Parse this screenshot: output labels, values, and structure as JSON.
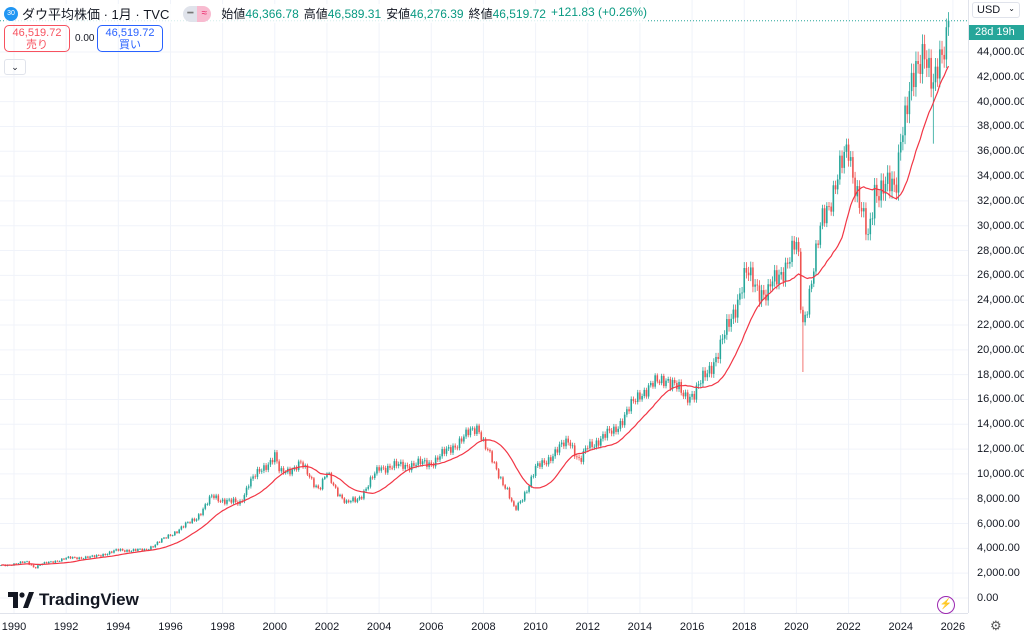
{
  "header": {
    "symbol_badge": "30",
    "title": "ダウ平均株価 · 1月 · TVC",
    "ohlc": [
      {
        "label": "始値",
        "value": "46,366.78"
      },
      {
        "label": "高値",
        "value": "46,589.31"
      },
      {
        "label": "安値",
        "value": "46,276.39"
      },
      {
        "label": "終値",
        "value": "46,519.72"
      }
    ],
    "change": "+121.83 (+0.26%)"
  },
  "trade": {
    "sell_price": "46,519.72",
    "sell_label": "売り",
    "spread": "0.00",
    "buy_price": "46,519.72",
    "buy_label": "買い"
  },
  "currency": "USD",
  "countdown": "28d 19h",
  "brand": "TradingView",
  "colors": {
    "up": "#26a69a",
    "down": "#ef5350",
    "ma": "#f23645",
    "grid": "#f0f3fa"
  },
  "chart_data": {
    "type": "candlestick",
    "interval": "1 month",
    "title": "ダウ平均株価",
    "ylabel": "USD",
    "ylim": [
      0,
      49000
    ],
    "xlim": [
      1989.5,
      2026.5
    ],
    "yticks": [
      "0.00",
      "2,000.00",
      "4,000.00",
      "6,000.00",
      "8,000.00",
      "10,000.00",
      "12,000.00",
      "14,000.00",
      "16,000.00",
      "18,000.00",
      "20,000.00",
      "22,000.00",
      "24,000.00",
      "26,000.00",
      "28,000.00",
      "30,000.00",
      "32,000.00",
      "34,000.00",
      "36,000.00",
      "38,000.00",
      "40,000.00",
      "42,000.00",
      "44,000.00"
    ],
    "xticks": [
      "1990",
      "1992",
      "1994",
      "1996",
      "1998",
      "2000",
      "2002",
      "2004",
      "2006",
      "2008",
      "2010",
      "2012",
      "2014",
      "2016",
      "2018",
      "2020",
      "2022",
      "2024",
      "2026"
    ],
    "close_anchors": [
      [
        1989.5,
        2600
      ],
      [
        1990.5,
        2900
      ],
      [
        1990.8,
        2450
      ],
      [
        1991,
        2700
      ],
      [
        1992,
        3200
      ],
      [
        1993,
        3300
      ],
      [
        1994,
        3850
      ],
      [
        1995,
        3850
      ],
      [
        1996,
        5100
      ],
      [
        1997,
        6500
      ],
      [
        1997.6,
        8200
      ],
      [
        1998,
        7900
      ],
      [
        1998.65,
        7600
      ],
      [
        1999,
        9300
      ],
      [
        2000,
        11500
      ],
      [
        2000.2,
        10000
      ],
      [
        2001,
        10800
      ],
      [
        2001.7,
        8800
      ],
      [
        2002,
        10000
      ],
      [
        2002.75,
        7600
      ],
      [
        2003.2,
        8000
      ],
      [
        2004,
        10500
      ],
      [
        2005,
        10700
      ],
      [
        2006,
        10900
      ],
      [
        2007,
        12500
      ],
      [
        2007.8,
        13900
      ],
      [
        2008,
        12600
      ],
      [
        2008.9,
        8800
      ],
      [
        2009.2,
        7000
      ],
      [
        2010,
        10400
      ],
      [
        2011.3,
        12800
      ],
      [
        2011.7,
        10900
      ],
      [
        2012,
        12200
      ],
      [
        2013,
        13500
      ],
      [
        2014,
        16500
      ],
      [
        2015,
        17800
      ],
      [
        2015.7,
        16300
      ],
      [
        2016.1,
        16500
      ],
      [
        2017,
        19800
      ],
      [
        2018.05,
        26100
      ],
      [
        2018.9,
        24300
      ],
      [
        2019,
        25000
      ],
      [
        2020.05,
        28500
      ],
      [
        2020.22,
        21900
      ],
      [
        2021,
        30600
      ],
      [
        2022,
        36300
      ],
      [
        2022.75,
        28700
      ],
      [
        2023,
        33100
      ],
      [
        2023.8,
        33000
      ],
      [
        2024,
        37700
      ],
      [
        2024.9,
        44900
      ],
      [
        2025.25,
        40700
      ],
      [
        2025.6,
        44100
      ],
      [
        2025.83,
        46519.72
      ]
    ],
    "notable_lows": [
      [
        2020.22,
        18214
      ],
      [
        2025.27,
        36612
      ]
    ],
    "moving_average": {
      "period": 20,
      "label": "MA"
    },
    "last_price": 46519.72
  }
}
